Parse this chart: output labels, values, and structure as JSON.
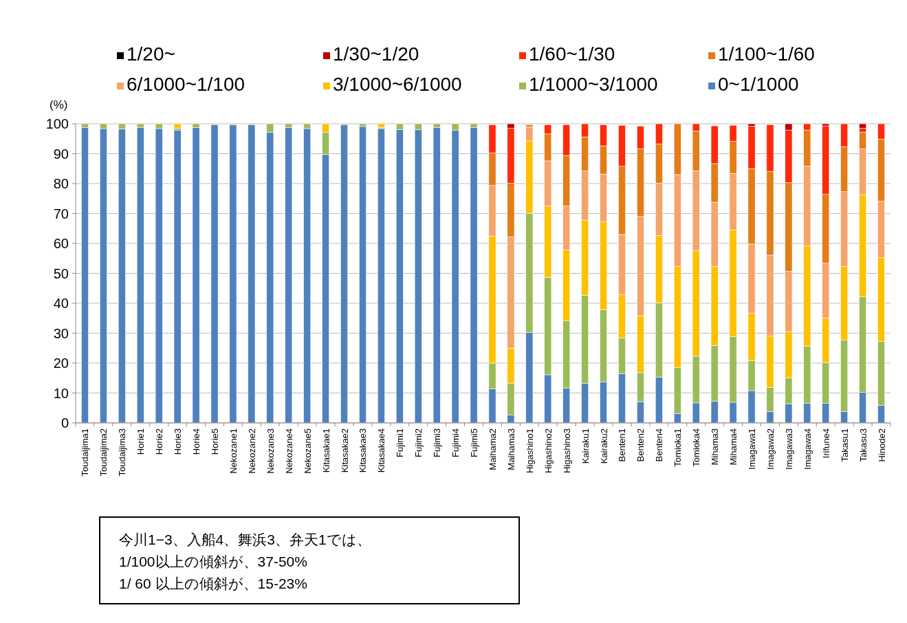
{
  "chart_data": {
    "type": "bar",
    "stacked": true,
    "ylabel": "(%)",
    "ylim": [
      0,
      100
    ],
    "yticks": [
      0,
      10,
      20,
      30,
      40,
      50,
      60,
      70,
      80,
      90,
      100
    ],
    "grid": "y",
    "legend": "top",
    "categories": [
      "Toudaijima1",
      "Toudaijima2",
      "Toudaijima3",
      "Horie1",
      "Horie2",
      "Horie3",
      "Horie4",
      "Horie5",
      "Nekozane1",
      "Nekozane2",
      "Nekozane3",
      "Nekozane4",
      "Nekozane5",
      "Kitasakae1",
      "Kitasakae2",
      "Kitasakae3",
      "Kitasakae4",
      "Fujimi1",
      "Fujimi2",
      "Fujimi3",
      "Fujimi4",
      "Fujimi5",
      "Maihama2",
      "Maihama3",
      "Higashino1",
      "Higashino2",
      "Higashino3",
      "Kairaku1",
      "Kairaku2",
      "Benten1",
      "Benten2",
      "Benten4",
      "Tomioka1",
      "Tomioka4",
      "Mihama3",
      "Mihama4",
      "Imagawa1",
      "Imagawa2",
      "Imagawa3",
      "Imagawa4",
      "Irifune4",
      "Takasu1",
      "Takasu3",
      "Hinode2"
    ],
    "series": [
      {
        "name": "0~1/1000",
        "color": "#4f81bd",
        "values": [
          98.7,
          98.4,
          98.3,
          98.8,
          98.4,
          97.9,
          98.7,
          99.7,
          99.7,
          99.7,
          97.2,
          98.7,
          98.4,
          89.7,
          99.7,
          99.1,
          98.4,
          98.1,
          98.1,
          98.8,
          97.9,
          98.7,
          11.4,
          2.6,
          30.2,
          16.1,
          11.7,
          13.2,
          13.7,
          16.4,
          7.1,
          15.3,
          3.1,
          6.7,
          7.3,
          6.9,
          10.8,
          3.8,
          6.4,
          6.6,
          6.6,
          3.8,
          10.2,
          5.9
        ]
      },
      {
        "name": "1/1000~3/1000",
        "color": "#9bbb59",
        "values": [
          1.3,
          1.6,
          1.7,
          1.2,
          1.6,
          0.6,
          1.3,
          0.3,
          0.3,
          0.3,
          2.8,
          1.3,
          1.6,
          7.5,
          0.3,
          0.9,
          0.4,
          1.9,
          1.9,
          1.2,
          2.1,
          1.3,
          8.6,
          10.7,
          39.9,
          32.6,
          22.4,
          29.5,
          24.1,
          12.0,
          9.7,
          24.8,
          15.5,
          15.6,
          18.6,
          22.0,
          10.0,
          8.1,
          8.6,
          19.1,
          13.5,
          23.9,
          32.0,
          21.3
        ]
      },
      {
        "name": "3/1000~6/1000",
        "color": "#ffc000",
        "values": [
          0,
          0,
          0,
          0,
          0,
          1.5,
          0,
          0,
          0,
          0,
          0,
          0,
          0,
          2.8,
          0,
          0,
          1.2,
          0,
          0,
          0,
          0,
          0,
          42.5,
          11.7,
          24.2,
          23.8,
          23.8,
          25.1,
          29.4,
          14.5,
          19.0,
          22.6,
          33.7,
          35.3,
          26.4,
          35.6,
          15.9,
          17.1,
          15.5,
          33.5,
          15.0,
          24.6,
          34.1,
          28.1
        ]
      },
      {
        "name": "6/1000~1/100",
        "color": "#f5a46a",
        "values": [
          0,
          0,
          0,
          0,
          0,
          0,
          0,
          0,
          0,
          0,
          0,
          0,
          0,
          0,
          0,
          0,
          0,
          0,
          0,
          0,
          0,
          0,
          16.9,
          37.2,
          4.7,
          15.1,
          14.6,
          16.4,
          16.0,
          20.1,
          33.2,
          17.4,
          30.7,
          26.7,
          21.5,
          18.9,
          23.1,
          27.1,
          20.2,
          26.7,
          18.3,
          25.0,
          15.3,
          18.8
        ]
      },
      {
        "name": "1/100~1/60",
        "color": "#e47c17",
        "values": [
          0,
          0,
          0,
          0,
          0,
          0,
          0,
          0,
          0,
          0,
          0,
          0,
          0,
          0,
          0,
          0,
          0,
          0,
          0,
          0,
          0,
          0,
          10.8,
          17.9,
          0.7,
          9.0,
          16.9,
          11.4,
          9.4,
          22.8,
          22.6,
          13.2,
          17.0,
          13.3,
          12.9,
          10.7,
          25.2,
          28.0,
          29.6,
          12.0,
          23.0,
          15.0,
          5.6,
          20.8
        ]
      },
      {
        "name": "1/60~1/30",
        "color": "#ff2a0a",
        "values": [
          0,
          0,
          0,
          0,
          0,
          0,
          0,
          0,
          0,
          0,
          0,
          0,
          0,
          0,
          0,
          0,
          0,
          0,
          0,
          0,
          0,
          0,
          9.5,
          18.4,
          0,
          3.1,
          10.3,
          4.4,
          7.1,
          13.7,
          7.6,
          6.7,
          0,
          2.4,
          12.6,
          5.4,
          14.2,
          15.6,
          17.6,
          2.1,
          22.9,
          7.7,
          1.3,
          5.1
        ]
      },
      {
        "name": "1/30~1/20",
        "color": "#c00000",
        "values": [
          0,
          0,
          0,
          0,
          0,
          0,
          0,
          0,
          0,
          0,
          0,
          0,
          0,
          0,
          0,
          0,
          0,
          0,
          0,
          0,
          0,
          0,
          0,
          1.5,
          0,
          0,
          0,
          0,
          0,
          0,
          0,
          0,
          0,
          0,
          0,
          0,
          0.8,
          0,
          2.1,
          0,
          0.7,
          0,
          1.5,
          0
        ]
      },
      {
        "name": "1/20~",
        "color": "#000000",
        "values": [
          0,
          0,
          0,
          0,
          0,
          0,
          0,
          0,
          0,
          0,
          0,
          0,
          0,
          0,
          0,
          0,
          0,
          0,
          0,
          0,
          0,
          0,
          0,
          0,
          0,
          0,
          0,
          0,
          0,
          0,
          0,
          0,
          0,
          0,
          0,
          0,
          0,
          0,
          0,
          0,
          0,
          0,
          0,
          0
        ]
      }
    ],
    "annotations": [
      "今川1−3、入船4、舞浜3、弁天1では、\n1/100以上の傾斜が、37-50%\n1/ 60 以上の傾斜が、15-23%"
    ]
  }
}
